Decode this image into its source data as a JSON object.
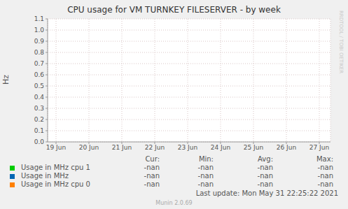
{
  "chart_data": {
    "type": "line",
    "title": "CPU usage for VM TURNKEY FILESERVER - by week",
    "y_label": "Hz",
    "categories": [
      "19 Jun",
      "20 Jun",
      "21 Jun",
      "22 Jun",
      "23 Jun",
      "24 Jun",
      "25 Jun",
      "26 Jun",
      "27 Jun"
    ],
    "series": [
      {
        "name": "Usage in MHz cpu 1",
        "color": "#00cc00",
        "values": [
          null,
          null,
          null,
          null,
          null,
          null,
          null,
          null,
          null
        ],
        "stats": [
          "-nan",
          "-nan",
          "-nan",
          "-nan"
        ]
      },
      {
        "name": "Usage in MHz",
        "color": "#0066b3",
        "values": [
          null,
          null,
          null,
          null,
          null,
          null,
          null,
          null,
          null
        ],
        "stats": [
          "-nan",
          "-nan",
          "-nan",
          "-nan"
        ]
      },
      {
        "name": "Usage in MHz cpu 0",
        "color": "#ff8000",
        "values": [
          null,
          null,
          null,
          null,
          null,
          null,
          null,
          null,
          null
        ],
        "stats": [
          "-nan",
          "-nan",
          "-nan",
          "-nan"
        ]
      }
    ],
    "stat_columns": [
      "Cur:",
      "Min:",
      "Avg:",
      "Max:"
    ],
    "ylim": [
      0,
      1.1
    ],
    "yticks": [
      {
        "value": 0,
        "label": "0.0"
      },
      0.1,
      0.2,
      0.3,
      0.4,
      0.5,
      0.6,
      0.7,
      0.8,
      0.9,
      {
        "value": 1,
        "label": "1.0"
      },
      1.1
    ],
    "grid": true,
    "legend": "bottom",
    "footer": "Last update: Mon May 31 22:25:22 2021",
    "version": "Munin 2.0.69",
    "watermark": "RRDTOOL / TOBI OETIKER"
  }
}
